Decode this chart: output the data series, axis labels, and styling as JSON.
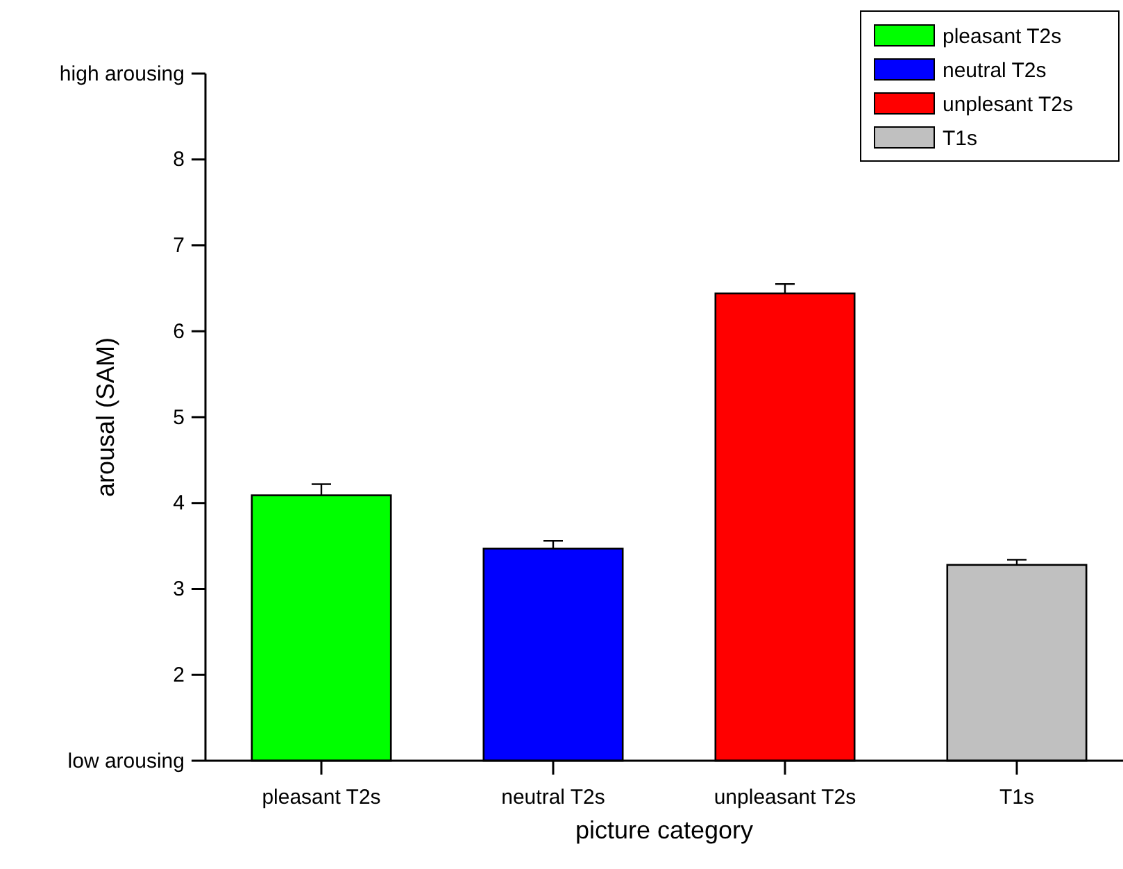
{
  "chart_data": {
    "type": "bar",
    "xlabel": "picture category",
    "ylabel": "arousal (SAM)",
    "categories": [
      "pleasant T2s",
      "neutral T2s",
      "unpleasant T2s",
      "T1s"
    ],
    "series": [
      {
        "name": "pleasant T2s",
        "color": "#00ff00",
        "values": [
          4.09,
          null,
          null,
          null
        ],
        "errors": [
          0.13,
          null,
          null,
          null
        ]
      },
      {
        "name": "neutral T2s",
        "color": "#0000ff",
        "values": [
          null,
          3.47,
          null,
          null
        ],
        "errors": [
          null,
          0.09,
          null,
          null
        ]
      },
      {
        "name": "unplesant T2s",
        "color": "#ff0000",
        "values": [
          null,
          null,
          6.44,
          null
        ],
        "errors": [
          null,
          null,
          0.11,
          null
        ]
      },
      {
        "name": "T1s",
        "color": "#c0c0c0",
        "values": [
          null,
          null,
          null,
          3.28
        ],
        "errors": [
          null,
          null,
          null,
          0.06
        ]
      }
    ],
    "ylim": [
      1,
      9
    ],
    "yticks": [
      {
        "value": 1,
        "label": "low arousing"
      },
      2,
      3,
      4,
      5,
      6,
      7,
      8,
      {
        "value": 9,
        "label": "high arousing"
      }
    ],
    "grid": false,
    "legend": "top right"
  }
}
